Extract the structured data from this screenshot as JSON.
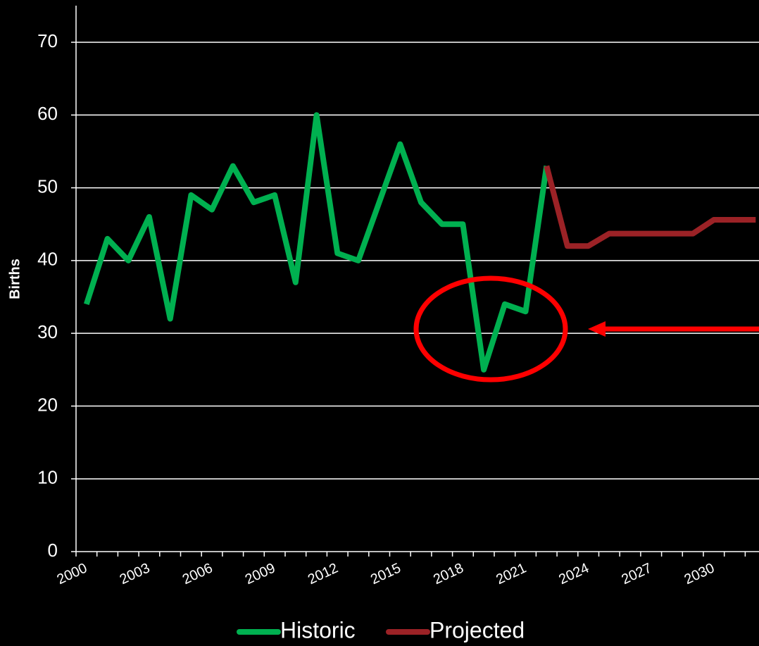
{
  "chart_data": {
    "type": "line",
    "y_label": "Births",
    "categories": [
      "2000",
      null,
      null,
      "2003",
      null,
      null,
      "2006",
      null,
      null,
      "2009",
      null,
      null,
      "2012",
      null,
      null,
      "2015",
      null,
      null,
      "2018",
      null,
      null,
      "2021",
      null,
      null,
      "2024",
      null,
      null,
      "2027",
      null,
      null,
      "2030",
      null,
      null
    ],
    "series": [
      {
        "name": "Historic",
        "color": "#00b050",
        "values": [
          34,
          43,
          40,
          46,
          32,
          49,
          47,
          53,
          48,
          49,
          37,
          60,
          41,
          40,
          48,
          56,
          48,
          45,
          45,
          25,
          34,
          33,
          53,
          null,
          null,
          null,
          null,
          null,
          null,
          null,
          null,
          null,
          null
        ]
      },
      {
        "name": "Projected",
        "color": "#9b2226",
        "values": [
          null,
          null,
          null,
          null,
          null,
          null,
          null,
          null,
          null,
          null,
          null,
          null,
          null,
          null,
          null,
          null,
          null,
          null,
          null,
          null,
          null,
          null,
          53,
          42,
          42,
          43.7,
          43.7,
          43.7,
          43.7,
          43.7,
          45.6,
          45.6,
          45.6
        ]
      }
    ],
    "ylim": [
      0,
      72
    ],
    "yticks": [
      0,
      10,
      20,
      30,
      40,
      50,
      60,
      70
    ],
    "grid": true,
    "legend": "bottom"
  }
}
